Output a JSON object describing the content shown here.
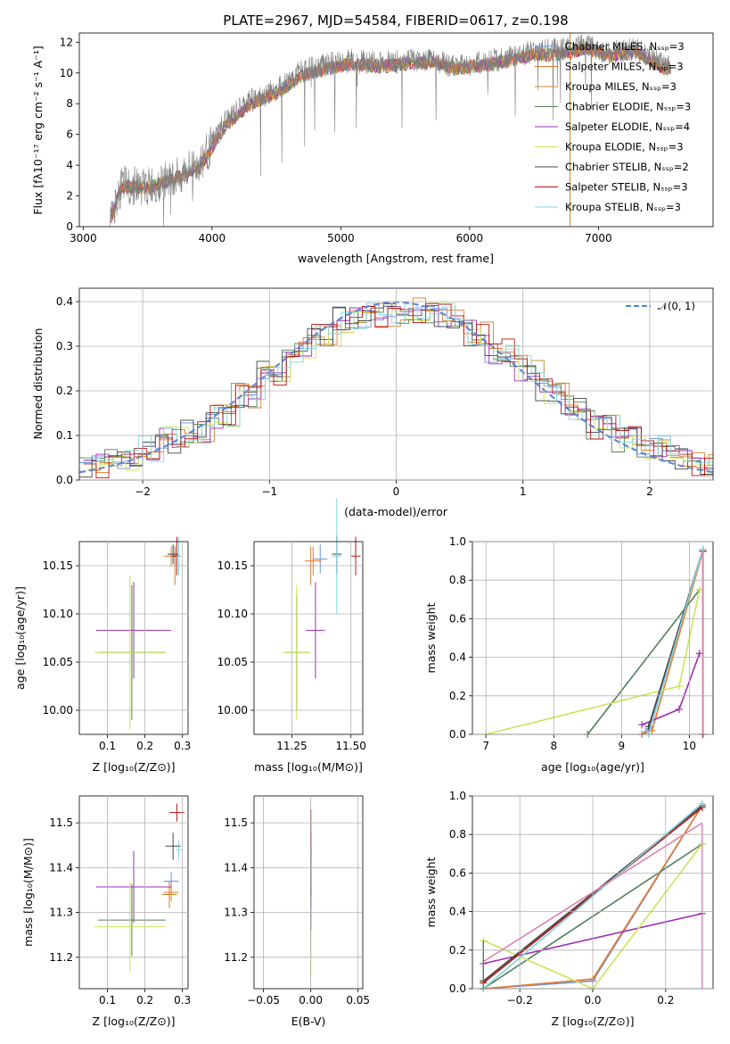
{
  "colors": {
    "chabrier_miles": "#6a8fd8",
    "salpeter_miles": "#e87a2c",
    "kroupa_miles": "#c8822a",
    "chabrier_elodie": "#4f7f5a",
    "salpeter_elodie": "#9b2fb0",
    "kroupa_elodie": "#c9e65a",
    "chabrier_stelib": "#444444",
    "salpeter_stelib": "#b41414",
    "kroupa_stelib": "#80d4e0",
    "normal": "#5b7fd6",
    "grid": "#b0b0b0",
    "spectrum": "#808080",
    "pink": "#e080b0"
  },
  "title": "PLATE=2967, MJD=54584, FIBERID=0617, z=0.198",
  "spectrum": {
    "xlabel": "wavelength [Angstrom, rest frame]",
    "ylabel": "Flux [fλ10⁻¹⁷ erg cm⁻² s⁻¹ A⁻¹]",
    "xticks": [
      "3000",
      "4000",
      "5000",
      "6000",
      "7000"
    ],
    "yticks": [
      "0",
      "2",
      "4",
      "6",
      "8",
      "10",
      "12"
    ],
    "legend": [
      "Chabrier MILES, Nₛₛₚ=3",
      "Salpeter MILES, Nₛₛₚ=3",
      "Kroupa MILES, Nₛₛₚ=3",
      "Chabrier ELODIE, Nₛₛₚ=3",
      "Salpeter ELODIE, Nₛₛₚ=4",
      "Kroupa ELODIE, Nₛₛₚ=3",
      "Chabrier STELIB, Nₛₛₚ=2",
      "Salpeter STELIB, Nₛₛₚ=3",
      "Kroupa STELIB, Nₛₛₚ=3"
    ]
  },
  "residuals": {
    "xlabel": "(data-model)/error",
    "ylabel": "Normed distribution",
    "xticks": [
      "−2",
      "−1",
      "0",
      "1",
      "2"
    ],
    "yticks": [
      "0.0",
      "0.1",
      "0.2",
      "0.3",
      "0.4"
    ],
    "legend": "𝒩(0, 1)"
  },
  "p_age_z": {
    "xlabel": "Z [log₁₀(Z/Z⊙)]",
    "ylabel": "age  [log₁₀(age/yr)]",
    "xticks": [
      "0.1",
      "0.2",
      "0.3"
    ],
    "yticks": [
      "10.00",
      "10.05",
      "10.10",
      "10.15"
    ]
  },
  "p_age_mass": {
    "xlabel": "mass [log₁₀(M/M⊙)]",
    "xticks": [
      "11.25",
      "11.50"
    ],
    "yticks": [
      "10.00",
      "10.05",
      "10.10",
      "10.15"
    ]
  },
  "p_mw_age": {
    "xlabel": "age  [log₁₀(age/yr)]",
    "ylabel": "mass weight",
    "xticks": [
      "7",
      "8",
      "9",
      "10"
    ],
    "yticks": [
      "0.0",
      "0.2",
      "0.4",
      "0.6",
      "0.8",
      "1.0"
    ]
  },
  "p_mass_z": {
    "xlabel": "Z [log₁₀(Z/Z⊙)]",
    "ylabel": "mass [log₁₀(M/M⊙)]",
    "xticks": [
      "0.1",
      "0.2",
      "0.3"
    ],
    "yticks": [
      "11.2",
      "11.3",
      "11.4",
      "11.5"
    ]
  },
  "p_mass_ebv": {
    "xlabel": "E(B-V)",
    "xticks": [
      "−0.05",
      "0.00",
      "0.05"
    ],
    "yticks": [
      "11.2",
      "11.3",
      "11.4",
      "11.5"
    ]
  },
  "p_mw_z": {
    "xlabel": "Z [log₁₀(Z/Z⊙)]",
    "ylabel": "mass weight",
    "xticks": [
      "−0.2",
      "0.0",
      "0.2"
    ],
    "yticks": [
      "0.0",
      "0.2",
      "0.4",
      "0.6",
      "0.8",
      "1.0"
    ]
  },
  "chart_data": [
    {
      "type": "line",
      "title": "PLATE=2967, MJD=54584, FIBERID=0617, z=0.198",
      "xlabel": "wavelength [Angstrom, rest frame]",
      "ylabel": "Flux",
      "xlim": [
        2970,
        7890
      ],
      "ylim": [
        0,
        12.6
      ],
      "x": [
        3200,
        3300,
        3500,
        3700,
        3900,
        4100,
        4300,
        4500,
        4700,
        4900,
        5100,
        5300,
        5500,
        5700,
        5900,
        6100,
        6300,
        6500,
        6700,
        6900,
        7100,
        7300,
        7500
      ],
      "series": [
        {
          "name": "data",
          "values": [
            0.2,
            2.7,
            2.6,
            3.2,
            4.0,
            6.8,
            8.2,
            8.9,
            10.1,
            10.6,
            10.8,
            10.6,
            10.8,
            10.9,
            10.4,
            10.7,
            11.0,
            11.4,
            11.5,
            11.8,
            11.3,
            11.6,
            10.5
          ]
        },
        {
          "name": "model",
          "values": [
            0.2,
            2.6,
            2.5,
            3.1,
            3.8,
            6.5,
            8.0,
            8.7,
            9.8,
            10.3,
            10.6,
            10.4,
            10.6,
            10.7,
            10.3,
            10.5,
            10.8,
            11.2,
            11.2,
            11.6,
            11.1,
            11.4,
            10.3
          ]
        }
      ]
    },
    {
      "type": "bar",
      "title": "",
      "xlabel": "(data-model)/error",
      "ylabel": "Normed distribution",
      "xlim": [
        -2.5,
        2.5
      ],
      "ylim": [
        0,
        0.43
      ],
      "x": [
        -2.4,
        -2.2,
        -2.0,
        -1.8,
        -1.6,
        -1.4,
        -1.2,
        -1.0,
        -0.8,
        -0.6,
        -0.4,
        -0.2,
        0.0,
        0.2,
        0.4,
        0.6,
        0.8,
        1.0,
        1.2,
        1.4,
        1.6,
        1.8,
        2.0,
        2.2,
        2.4
      ],
      "series": [
        {
          "name": "histogram",
          "values": [
            0.03,
            0.05,
            0.07,
            0.09,
            0.11,
            0.14,
            0.19,
            0.24,
            0.29,
            0.33,
            0.36,
            0.37,
            0.37,
            0.38,
            0.37,
            0.33,
            0.29,
            0.25,
            0.2,
            0.16,
            0.12,
            0.09,
            0.07,
            0.05,
            0.035
          ]
        },
        {
          "name": "𝒩(0, 1)",
          "values": [
            0.022,
            0.035,
            0.054,
            0.079,
            0.111,
            0.15,
            0.194,
            0.242,
            0.29,
            0.333,
            0.368,
            0.391,
            0.399,
            0.391,
            0.368,
            0.333,
            0.29,
            0.242,
            0.194,
            0.15,
            0.111,
            0.079,
            0.054,
            0.035,
            0.022
          ]
        }
      ]
    },
    {
      "type": "scatter",
      "title": "",
      "xlabel": "Z [log₁₀(Z/Z⊙)]",
      "ylabel": "age  [log₁₀(age/yr)]",
      "xlim": [
        0.025,
        0.315
      ],
      "ylim": [
        9.975,
        10.175
      ],
      "series": [
        {
          "name": "Chabrier MILES",
          "x": [
            0.28
          ],
          "y": [
            10.16
          ]
        },
        {
          "name": "Salpeter MILES",
          "x": [
            0.27
          ],
          "y": [
            10.16
          ]
        },
        {
          "name": "Kroupa MILES",
          "x": [
            0.28
          ],
          "y": [
            10.15
          ]
        },
        {
          "name": "Chabrier ELODIE",
          "x": [
            0.165
          ],
          "y": [
            10.06
          ]
        },
        {
          "name": "Salpeter ELODIE",
          "x": [
            0.17
          ],
          "y": [
            10.083
          ]
        },
        {
          "name": "Kroupa ELODIE",
          "x": [
            0.16
          ],
          "y": [
            10.06
          ]
        },
        {
          "name": "Chabrier STELIB",
          "x": [
            0.275
          ],
          "y": [
            10.162
          ]
        },
        {
          "name": "Salpeter STELIB",
          "x": [
            0.285
          ],
          "y": [
            10.16
          ]
        },
        {
          "name": "Kroupa STELIB",
          "x": [
            0.29
          ],
          "y": [
            10.16
          ]
        }
      ]
    },
    {
      "type": "scatter",
      "title": "",
      "xlabel": "mass [log₁₀(M/M⊙)]",
      "ylabel": "",
      "xlim": [
        11.09,
        11.55
      ],
      "ylim": [
        9.975,
        10.175
      ],
      "series": [
        {
          "name": "Chabrier MILES",
          "x": [
            11.37
          ],
          "y": [
            10.157
          ]
        },
        {
          "name": "Salpeter MILES",
          "x": [
            11.34
          ],
          "y": [
            10.155
          ]
        },
        {
          "name": "Kroupa MILES",
          "x": [
            11.33
          ],
          "y": [
            10.15
          ]
        },
        {
          "name": "Chabrier ELODIE",
          "x": [
            11.27
          ],
          "y": [
            10.06
          ]
        },
        {
          "name": "Salpeter ELODIE",
          "x": [
            11.35
          ],
          "y": [
            10.083
          ]
        },
        {
          "name": "Kroupa ELODIE",
          "x": [
            11.27
          ],
          "y": [
            10.06
          ]
        },
        {
          "name": "Chabrier STELIB",
          "x": [
            11.44
          ],
          "y": [
            10.162
          ]
        },
        {
          "name": "Salpeter STELIB",
          "x": [
            11.52
          ],
          "y": [
            10.16
          ]
        },
        {
          "name": "Kroupa STELIB",
          "x": [
            11.44
          ],
          "y": [
            10.16
          ]
        }
      ]
    },
    {
      "type": "line",
      "title": "",
      "xlabel": "age  [log₁₀(age/yr)]",
      "ylabel": "mass weight",
      "xlim": [
        6.8,
        10.35
      ],
      "ylim": [
        0,
        1
      ],
      "series": [
        {
          "name": "Chabrier MILES",
          "x": [
            9.3,
            9.4,
            10.2
          ],
          "y": [
            0.0,
            0.03,
            0.95
          ]
        },
        {
          "name": "Salpeter MILES",
          "x": [
            9.3,
            9.45,
            10.2
          ],
          "y": [
            0.0,
            0.02,
            0.95
          ]
        },
        {
          "name": "Chabrier ELODIE",
          "x": [
            8.5,
            10.15
          ],
          "y": [
            0.0,
            0.75
          ]
        },
        {
          "name": "Salpeter ELODIE",
          "x": [
            9.3,
            9.85,
            10.15
          ],
          "y": [
            0.05,
            0.13,
            0.42
          ]
        },
        {
          "name": "Kroupa ELODIE",
          "x": [
            7.0,
            9.85,
            10.15
          ],
          "y": [
            0.0,
            0.25,
            0.75
          ]
        },
        {
          "name": "Chabrier STELIB",
          "x": [
            9.4,
            10.2
          ],
          "y": [
            0.04,
            0.96
          ]
        },
        {
          "name": "Salpeter STELIB",
          "x": [
            10.2,
            10.2
          ],
          "y": [
            0.0,
            0.95
          ]
        },
        {
          "name": "Kroupa STELIB",
          "x": [
            9.4,
            10.2
          ],
          "y": [
            0.0,
            0.96
          ]
        }
      ]
    },
    {
      "type": "scatter",
      "title": "",
      "xlabel": "Z [log₁₀(Z/Z⊙)]",
      "ylabel": "mass [log₁₀(M/M⊙)]",
      "xlim": [
        0.025,
        0.315
      ],
      "ylim": [
        11.13,
        11.56
      ],
      "series": [
        {
          "name": "Chabrier MILES",
          "x": [
            0.27
          ],
          "y": [
            11.37
          ]
        },
        {
          "name": "Salpeter MILES",
          "x": [
            0.27
          ],
          "y": [
            11.345
          ]
        },
        {
          "name": "Kroupa MILES",
          "x": [
            0.265
          ],
          "y": [
            11.34
          ]
        },
        {
          "name": "Chabrier ELODIE",
          "x": [
            0.165
          ],
          "y": [
            11.283
          ]
        },
        {
          "name": "Salpeter ELODIE",
          "x": [
            0.17
          ],
          "y": [
            11.357
          ]
        },
        {
          "name": "Kroupa ELODIE",
          "x": [
            0.16
          ],
          "y": [
            11.268
          ]
        },
        {
          "name": "Chabrier STELIB",
          "x": [
            0.275
          ],
          "y": [
            11.448
          ]
        },
        {
          "name": "Salpeter STELIB",
          "x": [
            0.285
          ],
          "y": [
            11.523
          ]
        },
        {
          "name": "Kroupa STELIB",
          "x": [
            0.29
          ],
          "y": [
            11.44
          ]
        }
      ]
    },
    {
      "type": "scatter",
      "title": "",
      "xlabel": "E(B-V)",
      "ylabel": "",
      "xlim": [
        -0.06,
        0.055
      ],
      "ylim": [
        11.13,
        11.56
      ],
      "series": [
        {
          "name": "all models",
          "x": [
            0.0
          ],
          "y": [
            11.4
          ]
        }
      ]
    },
    {
      "type": "line",
      "title": "",
      "xlabel": "Z [log₁₀(Z/Z⊙)]",
      "ylabel": "mass weight",
      "xlim": [
        -0.33,
        0.33
      ],
      "ylim": [
        0,
        1
      ],
      "series": [
        {
          "name": "Chabrier MILES",
          "x": [
            -0.3,
            0.0,
            0.3
          ],
          "y": [
            0.0,
            0.04,
            0.95
          ]
        },
        {
          "name": "Salpeter MILES",
          "x": [
            -0.3,
            0.0,
            0.3
          ],
          "y": [
            0.0,
            0.05,
            0.95
          ]
        },
        {
          "name": "Chabrier ELODIE",
          "x": [
            -0.3,
            0.3
          ],
          "y": [
            0.0,
            0.75
          ]
        },
        {
          "name": "Salpeter ELODIE",
          "x": [
            -0.3,
            0.3
          ],
          "y": [
            0.13,
            0.39
          ]
        },
        {
          "name": "Kroupa ELODIE",
          "x": [
            -0.3,
            0.0,
            0.3
          ],
          "y": [
            0.25,
            0.0,
            0.75
          ]
        },
        {
          "name": "Chabrier STELIB",
          "x": [
            -0.3,
            0.3
          ],
          "y": [
            0.04,
            0.95
          ]
        },
        {
          "name": "Salpeter STELIB",
          "x": [
            -0.3,
            0.3
          ],
          "y": [
            0.03,
            0.94
          ]
        },
        {
          "name": "Kroupa STELIB",
          "x": [
            -0.3,
            0.3
          ],
          "y": [
            0.0,
            0.96
          ]
        }
      ]
    }
  ]
}
